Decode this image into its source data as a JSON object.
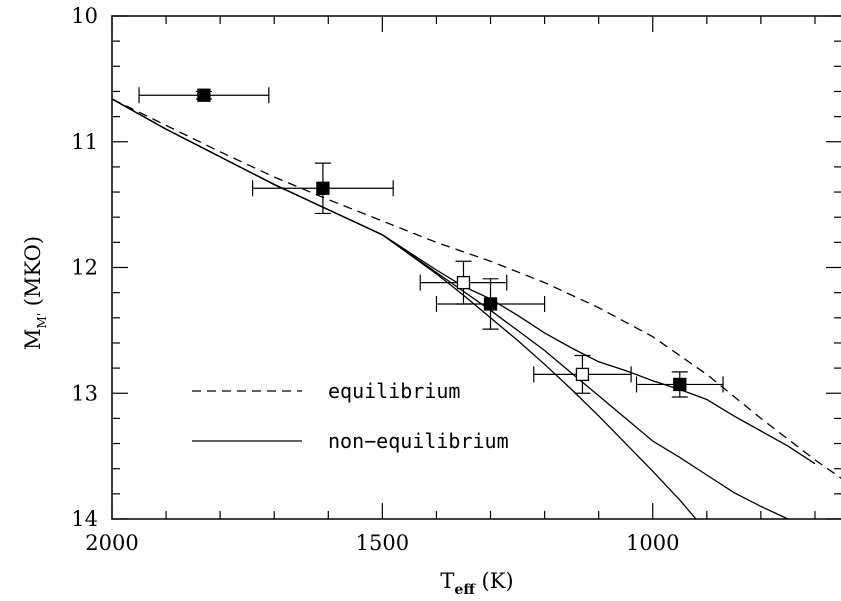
{
  "chart_data": {
    "type": "scatter",
    "title": "",
    "xlabel": {
      "main": "T",
      "sub": "eff",
      "tail": " (K)"
    },
    "ylabel": {
      "main": "M",
      "sub": "M'",
      "tail": " (MKO)"
    },
    "xlim": [
      2000,
      650
    ],
    "ylim": [
      14,
      10
    ],
    "x_ticks": [
      2000,
      1500,
      1000
    ],
    "y_ticks": [
      10,
      11,
      12,
      13,
      14
    ],
    "x_minor_step": 100,
    "y_minor_step": 0.2,
    "grid": false,
    "legend": {
      "placement": "lower-left",
      "entries": [
        {
          "label": "equilibrium",
          "style": "dashed"
        },
        {
          "label": "non−equilibrium",
          "style": "solid"
        }
      ]
    },
    "points": [
      {
        "x": 1830,
        "y": 10.63,
        "xerr": 120,
        "yerr": 0.03,
        "filled": true
      },
      {
        "x": 1610,
        "y": 11.37,
        "xerr": 130,
        "yerr": 0.2,
        "filled": true
      },
      {
        "x": 1350,
        "y": 12.12,
        "xerr": 80,
        "yerr": 0.17,
        "filled": false
      },
      {
        "x": 1300,
        "y": 12.29,
        "xerr": 100,
        "yerr": 0.2,
        "filled": true
      },
      {
        "x": 1130,
        "y": 12.85,
        "xerr": 90,
        "yerr": 0.15,
        "filled": false
      },
      {
        "x": 950,
        "y": 12.93,
        "xerr": 80,
        "yerr": 0.1,
        "filled": true
      }
    ],
    "series": [
      {
        "style": "dashed",
        "x": [
          2000,
          1900,
          1800,
          1700,
          1600,
          1500,
          1400,
          1300,
          1200,
          1100,
          1000,
          900,
          800,
          700,
          650
        ],
        "y": [
          10.66,
          10.87,
          11.08,
          11.28,
          11.46,
          11.63,
          11.8,
          11.95,
          12.12,
          12.32,
          12.55,
          12.85,
          13.2,
          13.53,
          13.68
        ]
      },
      {
        "style": "solid",
        "x": [
          2000,
          1900,
          1800,
          1700,
          1600,
          1500,
          1400,
          1350,
          1300,
          1250,
          1200,
          1150,
          1100,
          1050,
          1000,
          950,
          900,
          850,
          800,
          750,
          700
        ],
        "y": [
          10.66,
          10.9,
          11.12,
          11.34,
          11.54,
          11.74,
          12.02,
          12.15,
          12.25,
          12.38,
          12.52,
          12.64,
          12.75,
          12.82,
          12.9,
          12.97,
          13.05,
          13.18,
          13.3,
          13.42,
          13.56
        ]
      },
      {
        "style": "solid",
        "x": [
          2000,
          1900,
          1800,
          1700,
          1600,
          1500,
          1400,
          1350,
          1300,
          1250,
          1200,
          1150,
          1100,
          1050,
          1000,
          950,
          900,
          850,
          800,
          750
        ],
        "y": [
          10.66,
          10.9,
          11.12,
          11.34,
          11.54,
          11.74,
          12.04,
          12.19,
          12.34,
          12.5,
          12.66,
          12.84,
          13.02,
          13.2,
          13.38,
          13.51,
          13.65,
          13.79,
          13.9,
          14.0
        ]
      },
      {
        "style": "solid",
        "x": [
          2000,
          1900,
          1800,
          1700,
          1600,
          1500,
          1400,
          1350,
          1300,
          1250,
          1200,
          1150,
          1100,
          1050,
          1000,
          950,
          920
        ],
        "y": [
          10.66,
          10.9,
          11.12,
          11.34,
          11.54,
          11.74,
          12.05,
          12.22,
          12.4,
          12.58,
          12.77,
          12.97,
          13.18,
          13.4,
          13.62,
          13.85,
          14.0
        ]
      }
    ]
  }
}
